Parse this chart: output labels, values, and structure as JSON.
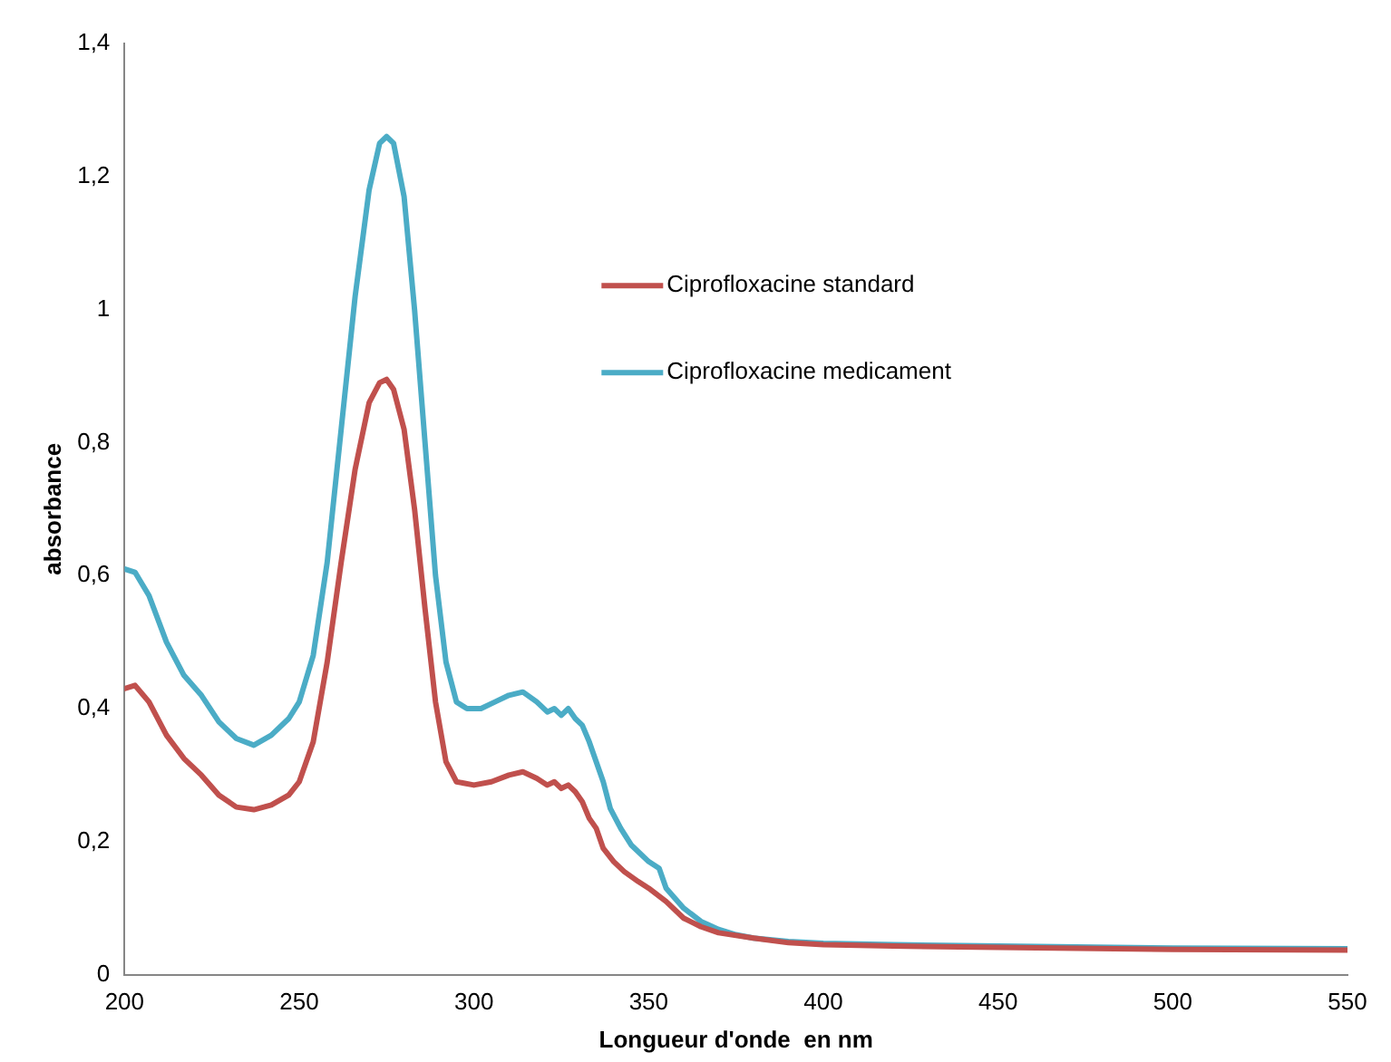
{
  "chart_data": {
    "type": "line",
    "xlabel": "Longueur d'onde  en nm",
    "ylabel": "absorbance",
    "xlim": [
      200,
      550
    ],
    "xticks": [
      200,
      250,
      300,
      350,
      400,
      450,
      500,
      550
    ],
    "ylim": [
      0,
      1.4
    ],
    "yticks": [
      0,
      {
        "value": 0.2,
        "label": "0,2"
      },
      {
        "value": 0.4,
        "label": "0,4"
      },
      {
        "value": 0.6,
        "label": "0,6"
      },
      {
        "value": 0.8,
        "label": "0,8"
      },
      1,
      {
        "value": 1.2,
        "label": "1,2"
      },
      {
        "value": 1.4,
        "label": "1,4"
      }
    ],
    "grid": false,
    "legend": "top right",
    "marker": "none",
    "line_style": "solid",
    "series": [
      {
        "name": "Ciprofloxacine standard",
        "color": "#c0504d",
        "x": [
          200,
          203,
          207,
          212,
          217,
          222,
          227,
          232,
          237,
          242,
          247,
          250,
          254,
          258,
          262,
          266,
          270,
          273,
          275,
          277,
          280,
          283,
          286,
          289,
          292,
          295,
          300,
          305,
          310,
          314,
          318,
          321,
          323,
          325,
          327,
          329,
          331,
          333,
          335,
          337,
          340,
          343,
          347,
          350,
          355,
          360,
          365,
          370,
          380,
          390,
          400,
          420,
          450,
          500,
          550
        ],
        "values": [
          0.43,
          0.435,
          0.41,
          0.36,
          0.325,
          0.3,
          0.27,
          0.252,
          0.248,
          0.255,
          0.27,
          0.29,
          0.35,
          0.47,
          0.62,
          0.76,
          0.86,
          0.89,
          0.895,
          0.88,
          0.82,
          0.7,
          0.55,
          0.41,
          0.32,
          0.29,
          0.285,
          0.29,
          0.3,
          0.305,
          0.295,
          0.285,
          0.29,
          0.28,
          0.285,
          0.275,
          0.26,
          0.235,
          0.22,
          0.19,
          0.17,
          0.155,
          0.14,
          0.13,
          0.11,
          0.085,
          0.072,
          0.063,
          0.055,
          0.048,
          0.045,
          0.043,
          0.041,
          0.038,
          0.037
        ]
      },
      {
        "name": "Ciprofloxacine medicament",
        "color": "#4bacc6",
        "x": [
          200,
          203,
          207,
          212,
          217,
          222,
          227,
          232,
          237,
          242,
          247,
          250,
          254,
          258,
          262,
          266,
          270,
          273,
          275,
          277,
          280,
          283,
          286,
          289,
          292,
          295,
          298,
          302,
          306,
          310,
          314,
          318,
          321,
          323,
          325,
          327,
          329,
          331,
          333,
          335,
          337,
          339,
          342,
          345,
          350,
          353,
          355,
          360,
          365,
          370,
          375,
          380,
          390,
          400,
          420,
          450,
          500,
          550
        ],
        "values": [
          0.61,
          0.605,
          0.57,
          0.5,
          0.45,
          0.42,
          0.38,
          0.355,
          0.345,
          0.36,
          0.385,
          0.41,
          0.48,
          0.62,
          0.82,
          1.02,
          1.18,
          1.25,
          1.26,
          1.25,
          1.17,
          1.0,
          0.8,
          0.6,
          0.47,
          0.41,
          0.4,
          0.4,
          0.41,
          0.42,
          0.425,
          0.41,
          0.395,
          0.4,
          0.39,
          0.4,
          0.385,
          0.375,
          0.35,
          0.32,
          0.29,
          0.25,
          0.22,
          0.195,
          0.17,
          0.16,
          0.13,
          0.1,
          0.08,
          0.068,
          0.06,
          0.055,
          0.05,
          0.047,
          0.045,
          0.043,
          0.04,
          0.039
        ]
      }
    ]
  }
}
